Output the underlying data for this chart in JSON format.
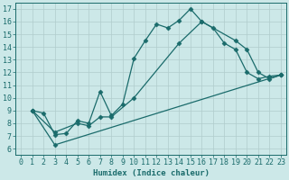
{
  "xlabel": "Humidex (Indice chaleur)",
  "bg_color": "#cce8e8",
  "line_color": "#1a6b6b",
  "grid_color": "#b0cccc",
  "xlim": [
    -0.5,
    23.5
  ],
  "ylim": [
    5.5,
    17.5
  ],
  "xticks": [
    0,
    1,
    2,
    3,
    4,
    5,
    6,
    7,
    8,
    9,
    10,
    11,
    12,
    13,
    14,
    15,
    16,
    17,
    18,
    19,
    20,
    21,
    22,
    23
  ],
  "yticks": [
    6,
    7,
    8,
    9,
    10,
    11,
    12,
    13,
    14,
    15,
    16,
    17
  ],
  "line1_x": [
    1,
    2,
    3,
    4,
    5,
    6,
    7,
    8,
    9,
    10,
    11,
    12,
    13,
    14,
    15,
    16,
    17,
    18,
    19,
    20,
    21,
    22,
    23
  ],
  "line1_y": [
    9.0,
    8.8,
    7.1,
    7.2,
    8.2,
    8.0,
    10.5,
    8.6,
    9.5,
    13.1,
    14.5,
    15.8,
    15.5,
    16.1,
    17.0,
    16.0,
    15.5,
    14.3,
    13.8,
    12.0,
    11.5,
    11.7,
    11.8
  ],
  "line2_x": [
    1,
    3,
    5,
    6,
    7,
    8,
    10,
    14,
    16,
    19,
    20,
    21,
    22,
    23
  ],
  "line2_y": [
    9.0,
    7.3,
    8.0,
    7.8,
    8.5,
    8.5,
    10.0,
    14.3,
    16.0,
    14.5,
    13.8,
    12.0,
    11.5,
    11.8
  ],
  "line3_x": [
    1,
    3,
    23
  ],
  "line3_y": [
    9.0,
    6.3,
    11.8
  ],
  "marker": "D",
  "marker_size": 2.5,
  "linewidth": 0.9,
  "font_size": 6.5,
  "tick_font_size": 6
}
